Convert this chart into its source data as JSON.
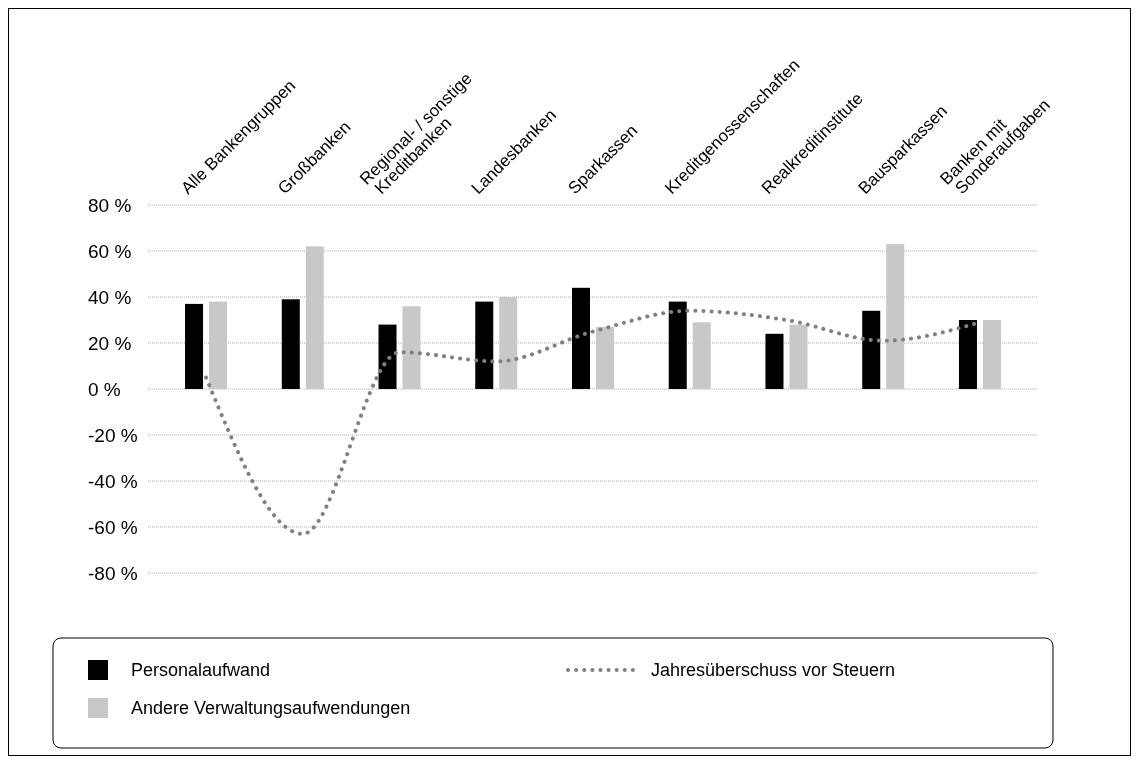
{
  "chart_data": {
    "type": "bar",
    "categories": [
      "Alle Bankengruppen",
      "Großbanken",
      "Regional- / sonstige Kreditbanken",
      "Landesbanken",
      "Sparkassen",
      "Kreditgenossenschaften",
      "Realkreditinstitute",
      "Bausparkassen",
      "Banken mit Sonderaufgaben"
    ],
    "series": [
      {
        "name": "Personalaufwand",
        "color": "#000000",
        "values": [
          37,
          39,
          28,
          38,
          44,
          38,
          24,
          34,
          30
        ]
      },
      {
        "name": "Andere Verwaltungsaufwendungen",
        "color": "#c8c8c8",
        "values": [
          38,
          62,
          36,
          40,
          27,
          29,
          28,
          63,
          30
        ]
      },
      {
        "name": "Jahresüberschuss vor Steuern",
        "type": "line",
        "color": "#808080",
        "line_style": "dotted",
        "values": [
          5,
          -63,
          16,
          12,
          25,
          34,
          30,
          21,
          29
        ]
      }
    ],
    "ylim": [
      -80,
      80
    ],
    "yticks": [
      {
        "value": -80,
        "label": "-80 %"
      },
      {
        "value": -60,
        "label": "-60 %"
      },
      {
        "value": -40,
        "label": "-40 %"
      },
      {
        "value": -20,
        "label": "-20 %"
      },
      {
        "value": 0,
        "label": "0 %"
      },
      {
        "value": 20,
        "label": "20 %"
      },
      {
        "value": 40,
        "label": "40 %"
      },
      {
        "value": 60,
        "label": "60 %"
      },
      {
        "value": 80,
        "label": "80 %"
      }
    ],
    "grid": "y",
    "legend": "bottom"
  }
}
